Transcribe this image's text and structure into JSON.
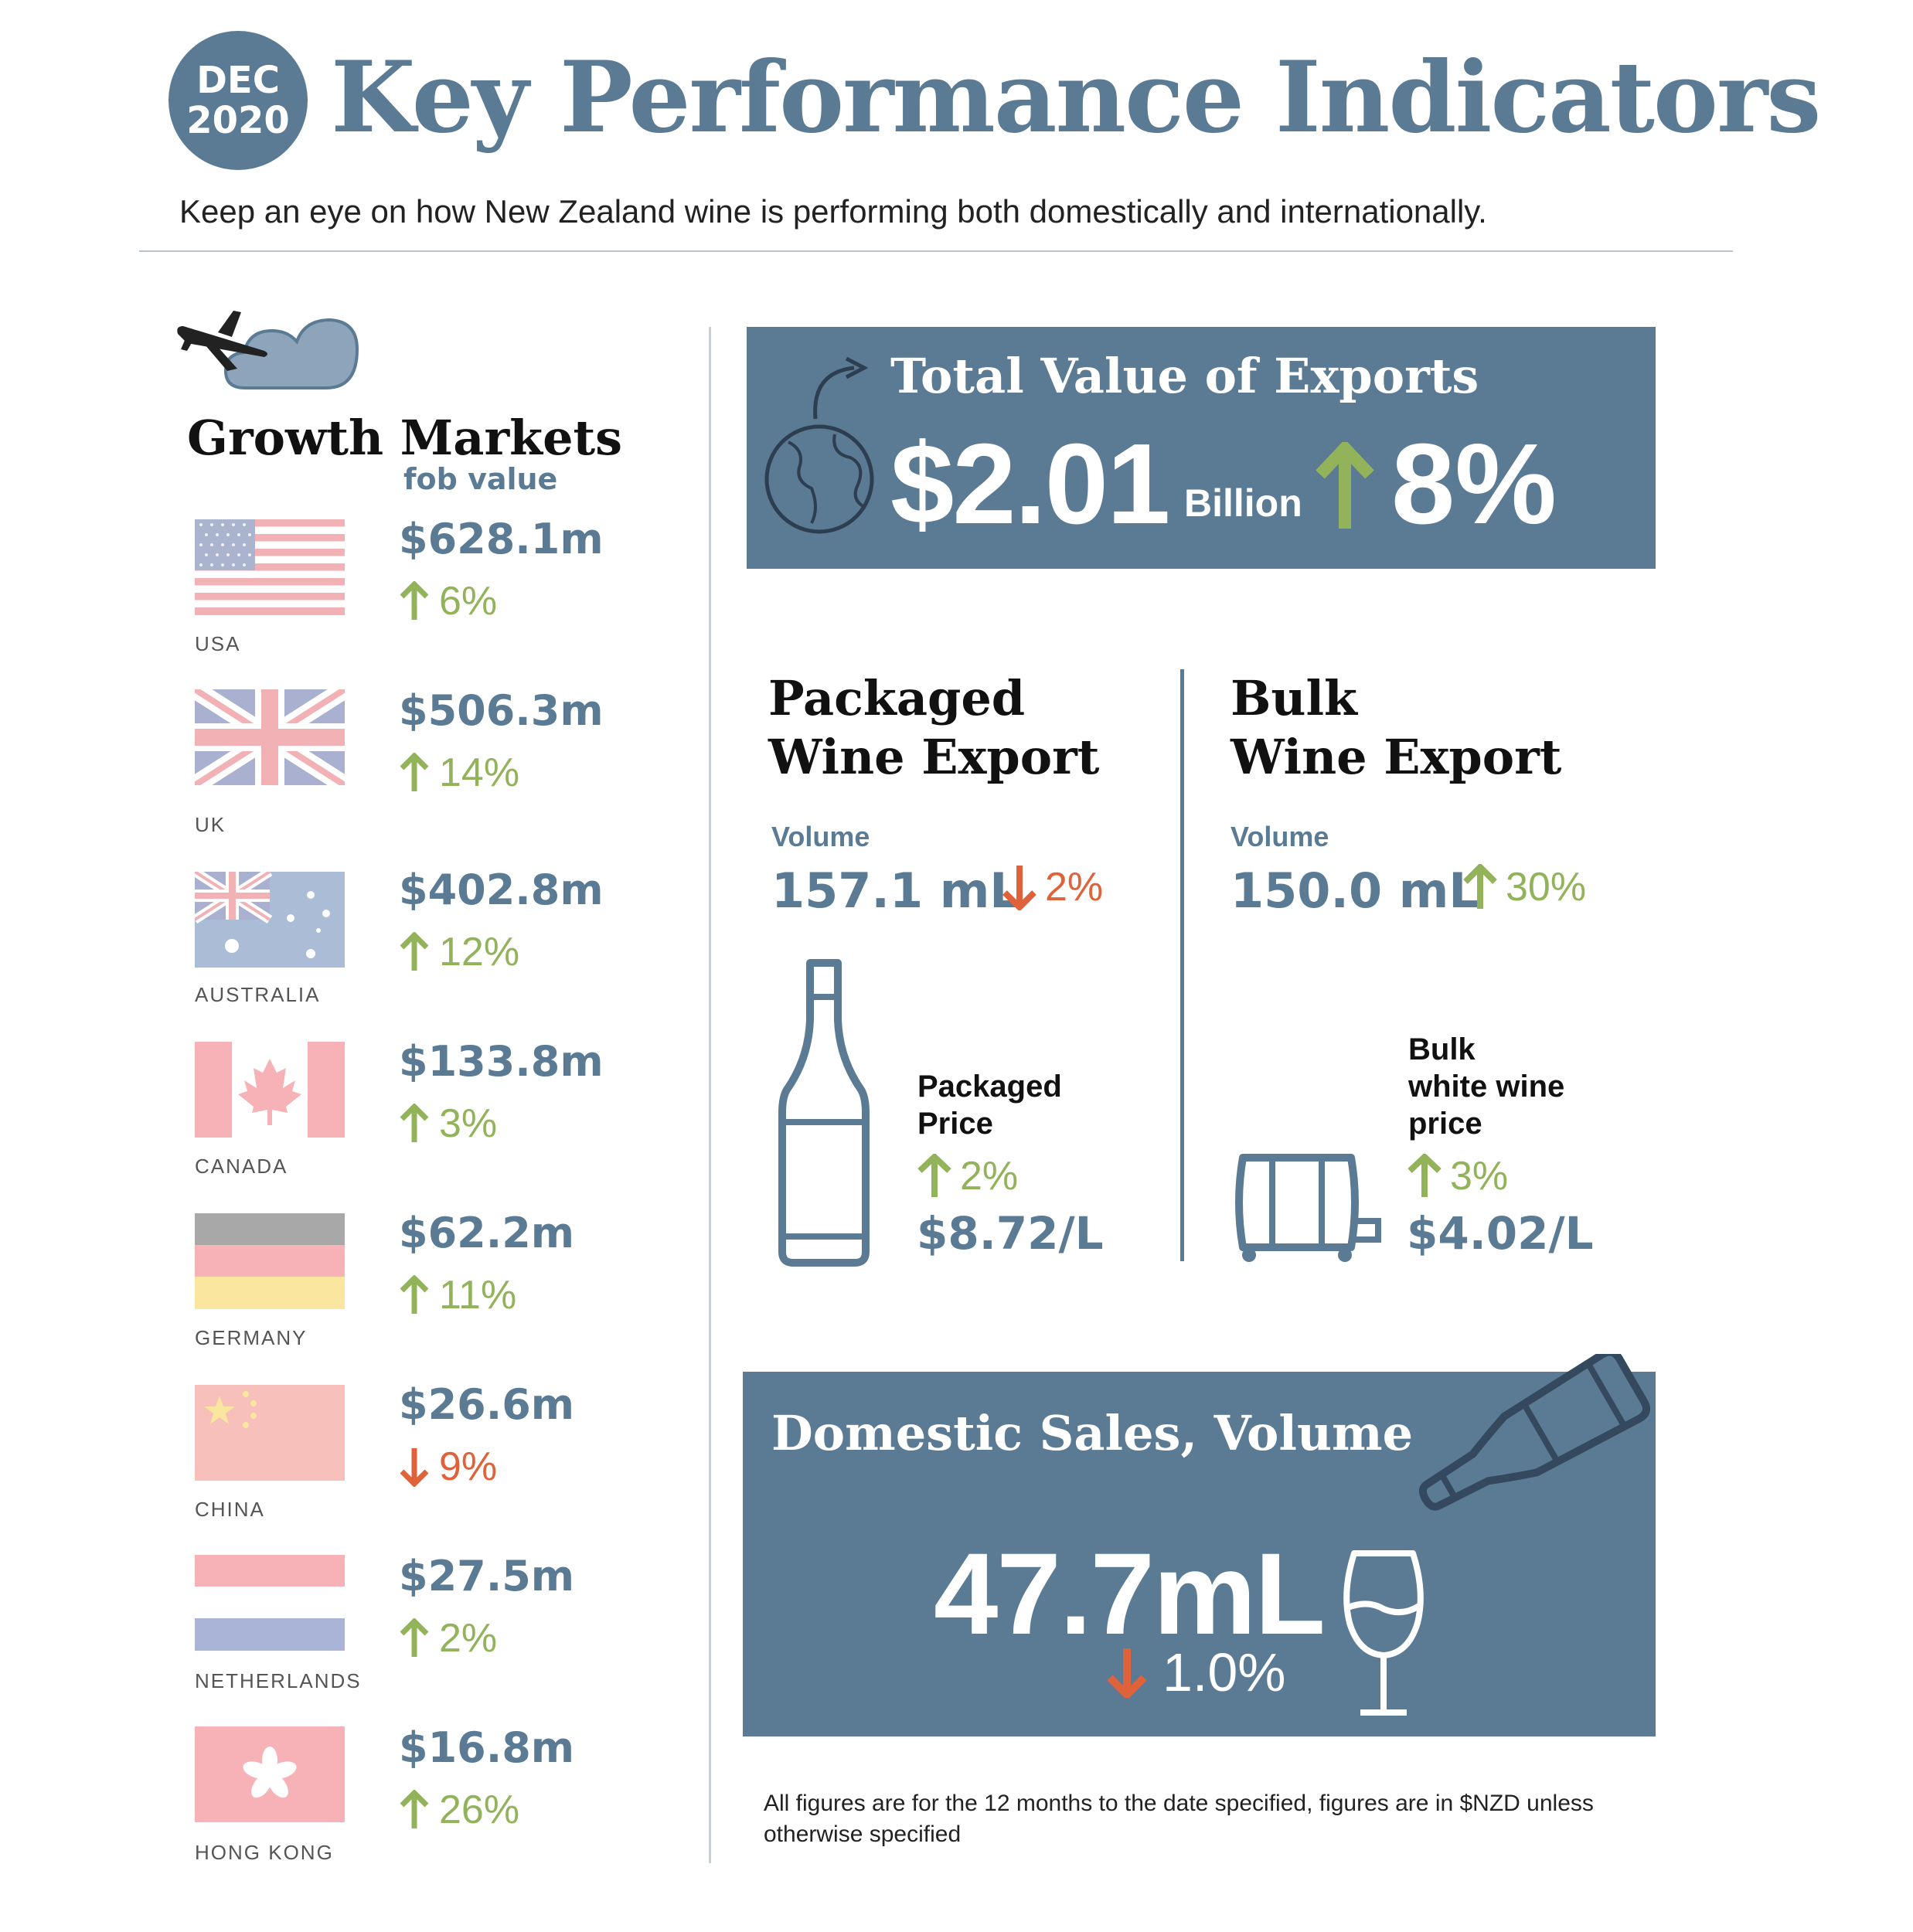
{
  "header": {
    "badge_month": "DEC",
    "badge_year": "2020",
    "title": "Key Performance Indicators",
    "subtitle": "Keep an eye on how New Zealand wine is performing both domestically and internationally."
  },
  "growth_markets": {
    "title": "Growth Markets",
    "subtitle": "fob value",
    "icon": "plane-cloud-icon",
    "markets": [
      {
        "country": "USA",
        "value": "$628.1m",
        "change": "6%",
        "direction": "up"
      },
      {
        "country": "UK",
        "value": "$506.3m",
        "change": "14%",
        "direction": "up"
      },
      {
        "country": "AUSTRALIA",
        "value": "$402.8m",
        "change": "12%",
        "direction": "up"
      },
      {
        "country": "CANADA",
        "value": "$133.8m",
        "change": "3%",
        "direction": "up"
      },
      {
        "country": "GERMANY",
        "value": "$62.2m",
        "change": "11%",
        "direction": "up"
      },
      {
        "country": "CHINA",
        "value": "$26.6m",
        "change": "9%",
        "direction": "down"
      },
      {
        "country": "NETHERLANDS",
        "value": "$27.5m",
        "change": "2%",
        "direction": "up"
      },
      {
        "country": "HONG KONG",
        "value": "$16.8m",
        "change": "26%",
        "direction": "up"
      }
    ]
  },
  "exports": {
    "title": "Total Value of Exports",
    "value": "$2.01",
    "unit": "Billion",
    "change": "8%",
    "direction": "up",
    "icon": "globe-icon"
  },
  "packaged": {
    "title_line1": "Packaged",
    "title_line2": "Wine Export",
    "volume_label": "Volume",
    "volume": "157.1 mL",
    "volume_change": "2%",
    "volume_direction": "down",
    "price_label_line1": "Packaged",
    "price_label_line2": "Price",
    "price_change": "2%",
    "price_direction": "up",
    "price": "$8.72/L",
    "icon": "wine-bottle-icon"
  },
  "bulk": {
    "title_line1": "Bulk",
    "title_line2": "Wine Export",
    "volume_label": "Volume",
    "volume": "150.0 mL",
    "volume_change": "30%",
    "volume_direction": "up",
    "price_label_line1": "Bulk",
    "price_label_line2": "white wine",
    "price_label_line3": "price",
    "price_change": "3%",
    "price_direction": "up",
    "price": "$4.02/L",
    "icon": "barrel-icon"
  },
  "domestic": {
    "title": "Domestic Sales, Volume",
    "value": "47.7mL",
    "change": "1.0%",
    "direction": "down",
    "icons": [
      "pouring-bottle-icon",
      "wine-glass-icon"
    ]
  },
  "footnote": "All figures are for the 12 months to the date specified, figures are in $NZD unless otherwise specified",
  "colors": {
    "primary": "#5b7a94",
    "up": "#93b35a",
    "down": "#e0623b"
  }
}
